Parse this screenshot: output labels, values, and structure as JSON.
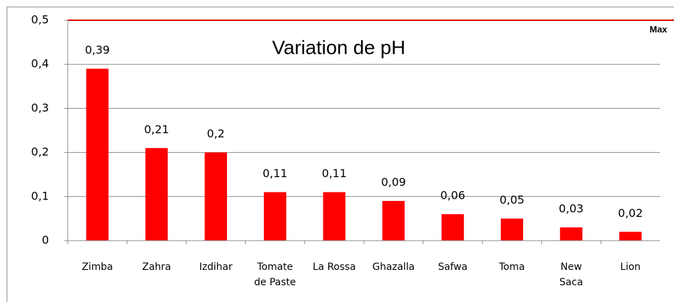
{
  "chart_data": {
    "type": "bar",
    "title": "Variation de pH",
    "categories": [
      "Zimba",
      "Zahra",
      "Izdihar",
      "Tomate\nde Paste",
      "La Rossa",
      "Ghazalla",
      "Safwa",
      "Toma",
      "New\nSaca",
      "Lion"
    ],
    "values": [
      0.39,
      0.21,
      0.2,
      0.11,
      0.11,
      0.09,
      0.06,
      0.05,
      0.03,
      0.02
    ],
    "value_labels": [
      "0,39",
      "0,21",
      "0,2",
      "0,11",
      "0,11",
      "0,09",
      "0,06",
      "0,05",
      "0,03",
      "0,02"
    ],
    "color": "#ff0000",
    "ylim": [
      0,
      0.5
    ],
    "yticks": [
      0,
      {
        "value": 0.1,
        "label": "0,1"
      },
      {
        "value": 0.2,
        "label": "0,2"
      },
      {
        "value": 0.3,
        "label": "0,3"
      },
      {
        "value": 0.4,
        "label": "0,4"
      },
      {
        "value": 0.5,
        "label": "0,5"
      }
    ],
    "grid": true,
    "threshold": 0.5,
    "threshold_color": "#e00000",
    "annotation": "Max"
  }
}
